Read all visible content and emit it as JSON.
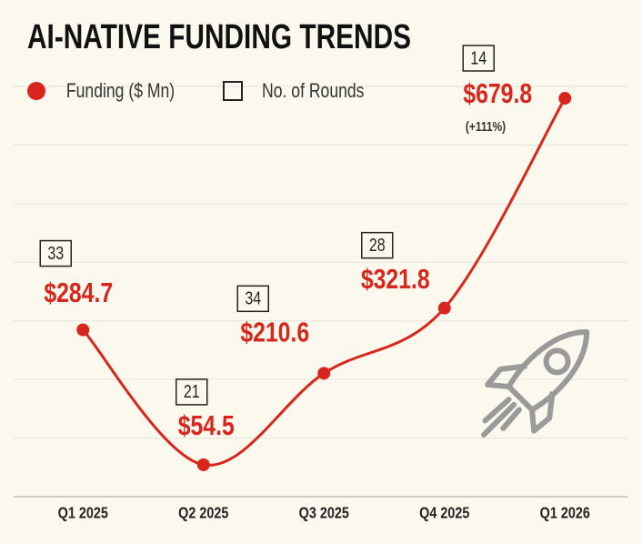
{
  "chart_data": {
    "type": "line",
    "title": "AI-NATIVE FUNDING TRENDS",
    "categories": [
      "Q1 2025",
      "Q2 2025",
      "Q3 2025",
      "Q4 2025",
      "Q1 2026"
    ],
    "series": [
      {
        "name": "Funding ($ Mn)",
        "color": "#d9261c",
        "values": [
          284.7,
          54.5,
          210.6,
          321.8,
          679.8
        ],
        "value_labels": [
          "$284.7",
          "$54.5",
          "$210.6",
          "$321.8",
          "$679.8"
        ]
      },
      {
        "name": "No. of Rounds",
        "color": "#222222",
        "values": [
          33,
          21,
          34,
          28,
          14
        ]
      }
    ],
    "annotation": "(+111%)",
    "ylim": [
      0,
      700
    ],
    "yticks": [
      0,
      100,
      200,
      300,
      400,
      500,
      600,
      700
    ],
    "grid": true
  }
}
